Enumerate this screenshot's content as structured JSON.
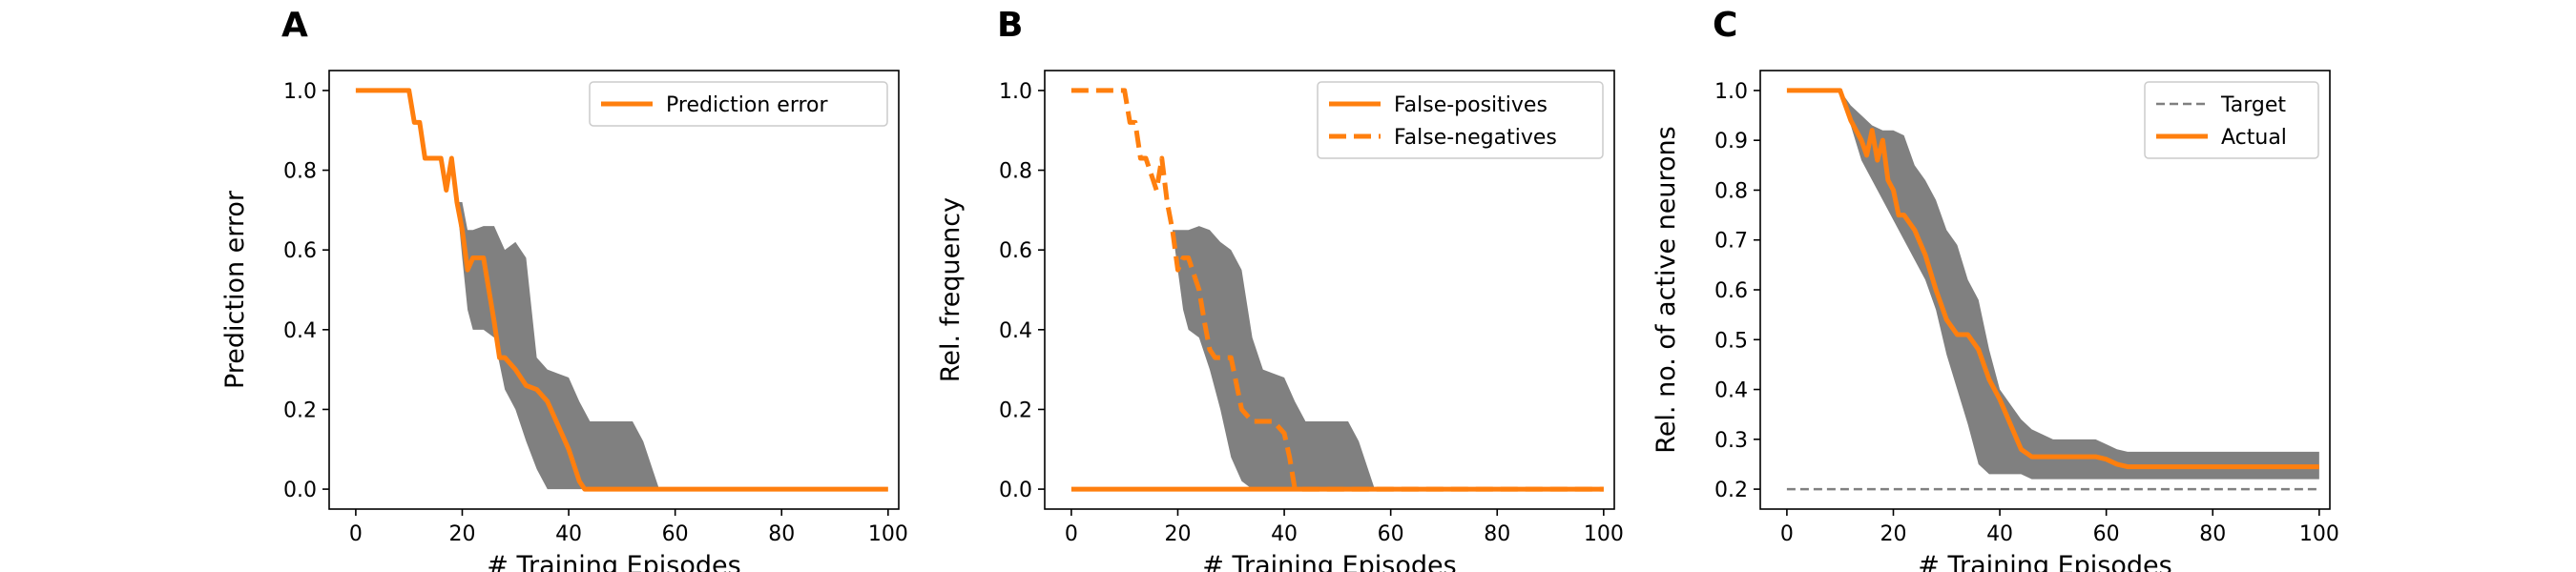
{
  "chart_data": [
    {
      "type": "line",
      "panel_label": "A",
      "xlabel": "# Training Episodes",
      "ylabel": "Prediction error",
      "xlim": [
        -5,
        102
      ],
      "ylim": [
        -0.05,
        1.05
      ],
      "xticks": [
        0,
        20,
        40,
        60,
        80,
        100
      ],
      "yticks": [
        0.0,
        0.2,
        0.4,
        0.6,
        0.8,
        1.0
      ],
      "ytick_decimals": 1,
      "legend_position": "top-right",
      "band_color": "#808080",
      "series": [
        {
          "name": "Prediction error",
          "color": "#ff7f0e",
          "style": "solid",
          "x": [
            0,
            10,
            11,
            12,
            13,
            14,
            16,
            17,
            18,
            19,
            20,
            21,
            22,
            24,
            25,
            26,
            27,
            28,
            30,
            32,
            34,
            36,
            38,
            40,
            42,
            43,
            100
          ],
          "y": [
            1.0,
            1.0,
            0.92,
            0.92,
            0.83,
            0.83,
            0.83,
            0.75,
            0.83,
            0.72,
            0.65,
            0.55,
            0.58,
            0.58,
            0.5,
            0.42,
            0.33,
            0.33,
            0.3,
            0.26,
            0.25,
            0.22,
            0.16,
            0.1,
            0.02,
            0.0,
            0.0
          ]
        }
      ],
      "bands": [
        {
          "x": [
            0,
            10,
            11,
            12,
            13,
            14,
            16,
            17,
            18,
            19,
            20,
            21,
            22,
            24,
            26,
            28,
            30,
            32,
            34,
            36,
            38,
            40,
            42,
            44,
            46,
            48,
            52,
            54,
            56,
            57,
            58,
            100
          ],
          "lower": [
            1.0,
            1.0,
            0.92,
            0.92,
            0.83,
            0.83,
            0.83,
            0.75,
            0.83,
            0.72,
            0.58,
            0.45,
            0.4,
            0.4,
            0.38,
            0.25,
            0.2,
            0.12,
            0.05,
            0.0,
            0.0,
            0.0,
            0.0,
            0.0,
            0.0,
            0.0,
            0.0,
            0.0,
            0.0,
            0.0,
            0.0,
            0.0
          ],
          "upper": [
            1.0,
            1.0,
            0.92,
            0.92,
            0.83,
            0.83,
            0.83,
            0.75,
            0.83,
            0.72,
            0.72,
            0.65,
            0.65,
            0.66,
            0.66,
            0.6,
            0.62,
            0.58,
            0.33,
            0.3,
            0.29,
            0.28,
            0.22,
            0.17,
            0.17,
            0.17,
            0.17,
            0.12,
            0.04,
            0.0,
            0.0,
            0.0
          ]
        }
      ]
    },
    {
      "type": "line",
      "panel_label": "B",
      "xlabel": "# Training Episodes",
      "ylabel": "Rel. frequency",
      "xlim": [
        -5,
        102
      ],
      "ylim": [
        -0.05,
        1.05
      ],
      "xticks": [
        0,
        20,
        40,
        60,
        80,
        100
      ],
      "yticks": [
        0.0,
        0.2,
        0.4,
        0.6,
        0.8,
        1.0
      ],
      "ytick_decimals": 1,
      "legend_position": "top-right",
      "band_color": "#808080",
      "series": [
        {
          "name": "False-positives",
          "color": "#ff7f0e",
          "style": "solid",
          "x": [
            0,
            100
          ],
          "y": [
            0.0,
            0.0
          ]
        },
        {
          "name": "False-negatives",
          "color": "#ff7f0e",
          "style": "dashed",
          "x": [
            0,
            10,
            11,
            12,
            13,
            14,
            16,
            17,
            18,
            19,
            20,
            21,
            22,
            24,
            25,
            26,
            27,
            28,
            30,
            32,
            34,
            36,
            38,
            40,
            41,
            42,
            100
          ],
          "y": [
            1.0,
            1.0,
            0.92,
            0.92,
            0.83,
            0.83,
            0.75,
            0.83,
            0.72,
            0.65,
            0.55,
            0.58,
            0.58,
            0.5,
            0.42,
            0.35,
            0.33,
            0.33,
            0.33,
            0.2,
            0.17,
            0.17,
            0.17,
            0.14,
            0.08,
            0.0,
            0.0
          ]
        }
      ],
      "bands": [
        {
          "x": [
            0,
            10,
            11,
            12,
            13,
            14,
            16,
            17,
            18,
            19,
            20,
            21,
            22,
            24,
            26,
            28,
            30,
            32,
            34,
            36,
            38,
            40,
            42,
            44,
            46,
            48,
            52,
            54,
            56,
            57,
            58,
            100
          ],
          "lower": [
            1.0,
            1.0,
            0.92,
            0.92,
            0.83,
            0.83,
            0.75,
            0.83,
            0.72,
            0.65,
            0.55,
            0.45,
            0.4,
            0.38,
            0.3,
            0.2,
            0.08,
            0.02,
            0.0,
            0.0,
            0.0,
            0.0,
            0.0,
            0.0,
            0.0,
            0.0,
            0.0,
            0.0,
            0.0,
            0.0,
            0.0,
            0.0
          ],
          "upper": [
            1.0,
            1.0,
            0.92,
            0.92,
            0.83,
            0.83,
            0.75,
            0.83,
            0.72,
            0.65,
            0.65,
            0.65,
            0.65,
            0.66,
            0.65,
            0.62,
            0.6,
            0.55,
            0.38,
            0.3,
            0.29,
            0.28,
            0.22,
            0.17,
            0.17,
            0.17,
            0.17,
            0.12,
            0.04,
            0.0,
            0.0,
            0.0
          ]
        }
      ]
    },
    {
      "type": "line",
      "panel_label": "C",
      "xlabel": "# Training Episodes",
      "ylabel": "Rel. no. of active neurons",
      "xlim": [
        -5,
        102
      ],
      "ylim": [
        0.16,
        1.04
      ],
      "xticks": [
        0,
        20,
        40,
        60,
        80,
        100
      ],
      "yticks": [
        0.2,
        0.3,
        0.4,
        0.5,
        0.6,
        0.7,
        0.8,
        0.9,
        1.0
      ],
      "ytick_decimals": 1,
      "legend_position": "top-right",
      "band_color": "#808080",
      "series": [
        {
          "name": "Target",
          "color": "#808080",
          "style": "dashed-thin",
          "x": [
            0,
            100
          ],
          "y": [
            0.2,
            0.2
          ]
        },
        {
          "name": "Actual",
          "color": "#ff7f0e",
          "style": "solid",
          "x": [
            0,
            10,
            12,
            14,
            15,
            16,
            17,
            18,
            19,
            20,
            21,
            22,
            24,
            26,
            28,
            30,
            32,
            34,
            36,
            38,
            40,
            42,
            44,
            46,
            48,
            50,
            54,
            58,
            60,
            62,
            64,
            70,
            100
          ],
          "y": [
            1.0,
            1.0,
            0.94,
            0.9,
            0.87,
            0.92,
            0.86,
            0.9,
            0.82,
            0.8,
            0.75,
            0.75,
            0.72,
            0.67,
            0.6,
            0.54,
            0.51,
            0.51,
            0.48,
            0.42,
            0.38,
            0.33,
            0.28,
            0.265,
            0.265,
            0.265,
            0.265,
            0.265,
            0.26,
            0.25,
            0.245,
            0.245,
            0.245
          ]
        }
      ],
      "bands": [
        {
          "x": [
            0,
            10,
            12,
            14,
            16,
            18,
            20,
            22,
            24,
            26,
            28,
            30,
            32,
            34,
            36,
            38,
            40,
            42,
            44,
            46,
            48,
            50,
            54,
            58,
            60,
            62,
            64,
            70,
            100
          ],
          "lower": [
            1.0,
            1.0,
            0.93,
            0.86,
            0.82,
            0.78,
            0.74,
            0.7,
            0.66,
            0.62,
            0.56,
            0.47,
            0.4,
            0.33,
            0.25,
            0.23,
            0.23,
            0.23,
            0.23,
            0.22,
            0.22,
            0.22,
            0.22,
            0.22,
            0.22,
            0.22,
            0.22,
            0.22,
            0.22
          ],
          "upper": [
            1.0,
            1.0,
            0.97,
            0.95,
            0.93,
            0.92,
            0.92,
            0.91,
            0.85,
            0.82,
            0.78,
            0.72,
            0.69,
            0.62,
            0.58,
            0.48,
            0.4,
            0.37,
            0.34,
            0.32,
            0.31,
            0.3,
            0.3,
            0.3,
            0.29,
            0.28,
            0.275,
            0.275,
            0.275
          ]
        }
      ]
    }
  ]
}
